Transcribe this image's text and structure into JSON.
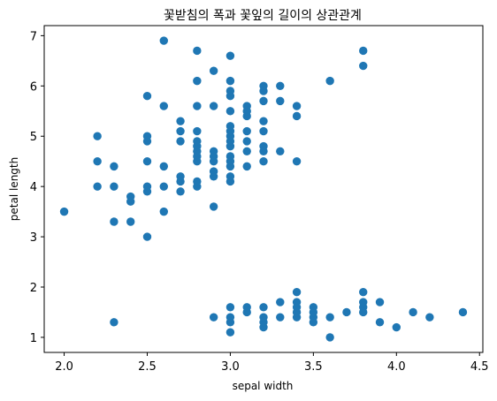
{
  "chart_data": {
    "type": "scatter",
    "title": "꽃받침의 폭과 꽃잎의 길이의 상관관계",
    "xlabel": "sepal width",
    "ylabel": "petal length",
    "xlim": [
      1.88,
      4.52
    ],
    "ylim": [
      0.7,
      7.2
    ],
    "xticks": [
      2.0,
      2.5,
      3.0,
      3.5,
      4.0,
      4.5
    ],
    "xtick_labels": [
      "2.0",
      "2.5",
      "3.0",
      "3.5",
      "4.0",
      "4.5"
    ],
    "yticks": [
      1,
      2,
      3,
      4,
      5,
      6,
      7
    ],
    "ytick_labels": [
      "1",
      "2",
      "3",
      "4",
      "5",
      "6",
      "7"
    ],
    "grid": false,
    "marker_color": "#1f77b4",
    "points": [
      {
        "x": 2.0,
        "y": 3.5
      },
      {
        "x": 2.2,
        "y": 4.0
      },
      {
        "x": 2.2,
        "y": 4.5
      },
      {
        "x": 2.2,
        "y": 5.0
      },
      {
        "x": 2.3,
        "y": 1.3
      },
      {
        "x": 2.3,
        "y": 3.3
      },
      {
        "x": 2.3,
        "y": 4.0
      },
      {
        "x": 2.3,
        "y": 4.4
      },
      {
        "x": 2.4,
        "y": 3.3
      },
      {
        "x": 2.4,
        "y": 3.7
      },
      {
        "x": 2.4,
        "y": 3.8
      },
      {
        "x": 2.5,
        "y": 3.0
      },
      {
        "x": 2.5,
        "y": 3.9
      },
      {
        "x": 2.5,
        "y": 4.0
      },
      {
        "x": 2.5,
        "y": 4.5
      },
      {
        "x": 2.5,
        "y": 4.9
      },
      {
        "x": 2.5,
        "y": 5.0
      },
      {
        "x": 2.5,
        "y": 5.8
      },
      {
        "x": 2.6,
        "y": 3.5
      },
      {
        "x": 2.6,
        "y": 4.0
      },
      {
        "x": 2.6,
        "y": 4.4
      },
      {
        "x": 2.6,
        "y": 5.6
      },
      {
        "x": 2.6,
        "y": 6.9
      },
      {
        "x": 2.7,
        "y": 3.9
      },
      {
        "x": 2.7,
        "y": 4.1
      },
      {
        "x": 2.7,
        "y": 4.2
      },
      {
        "x": 2.7,
        "y": 4.9
      },
      {
        "x": 2.7,
        "y": 5.1
      },
      {
        "x": 2.7,
        "y": 5.3
      },
      {
        "x": 2.8,
        "y": 4.0
      },
      {
        "x": 2.8,
        "y": 4.1
      },
      {
        "x": 2.8,
        "y": 4.5
      },
      {
        "x": 2.8,
        "y": 4.6
      },
      {
        "x": 2.8,
        "y": 4.7
      },
      {
        "x": 2.8,
        "y": 4.8
      },
      {
        "x": 2.8,
        "y": 4.9
      },
      {
        "x": 2.8,
        "y": 5.1
      },
      {
        "x": 2.8,
        "y": 5.6
      },
      {
        "x": 2.8,
        "y": 6.1
      },
      {
        "x": 2.8,
        "y": 6.7
      },
      {
        "x": 2.9,
        "y": 1.4
      },
      {
        "x": 2.9,
        "y": 3.6
      },
      {
        "x": 2.9,
        "y": 4.2
      },
      {
        "x": 2.9,
        "y": 4.3
      },
      {
        "x": 2.9,
        "y": 4.5
      },
      {
        "x": 2.9,
        "y": 4.6
      },
      {
        "x": 2.9,
        "y": 4.7
      },
      {
        "x": 2.9,
        "y": 5.6
      },
      {
        "x": 2.9,
        "y": 6.3
      },
      {
        "x": 3.0,
        "y": 1.1
      },
      {
        "x": 3.0,
        "y": 1.3
      },
      {
        "x": 3.0,
        "y": 1.4
      },
      {
        "x": 3.0,
        "y": 1.6
      },
      {
        "x": 3.0,
        "y": 4.1
      },
      {
        "x": 3.0,
        "y": 4.2
      },
      {
        "x": 3.0,
        "y": 4.4
      },
      {
        "x": 3.0,
        "y": 4.5
      },
      {
        "x": 3.0,
        "y": 4.6
      },
      {
        "x": 3.0,
        "y": 4.8
      },
      {
        "x": 3.0,
        "y": 4.9
      },
      {
        "x": 3.0,
        "y": 5.0
      },
      {
        "x": 3.0,
        "y": 5.1
      },
      {
        "x": 3.0,
        "y": 5.2
      },
      {
        "x": 3.0,
        "y": 5.5
      },
      {
        "x": 3.0,
        "y": 5.8
      },
      {
        "x": 3.0,
        "y": 5.9
      },
      {
        "x": 3.0,
        "y": 6.1
      },
      {
        "x": 3.0,
        "y": 6.6
      },
      {
        "x": 3.1,
        "y": 1.5
      },
      {
        "x": 3.1,
        "y": 1.6
      },
      {
        "x": 3.1,
        "y": 4.4
      },
      {
        "x": 3.1,
        "y": 4.7
      },
      {
        "x": 3.1,
        "y": 4.9
      },
      {
        "x": 3.1,
        "y": 5.1
      },
      {
        "x": 3.1,
        "y": 5.4
      },
      {
        "x": 3.1,
        "y": 5.5
      },
      {
        "x": 3.1,
        "y": 5.6
      },
      {
        "x": 3.2,
        "y": 1.2
      },
      {
        "x": 3.2,
        "y": 1.3
      },
      {
        "x": 3.2,
        "y": 1.4
      },
      {
        "x": 3.2,
        "y": 1.6
      },
      {
        "x": 3.2,
        "y": 4.5
      },
      {
        "x": 3.2,
        "y": 4.7
      },
      {
        "x": 3.2,
        "y": 4.8
      },
      {
        "x": 3.2,
        "y": 5.1
      },
      {
        "x": 3.2,
        "y": 5.3
      },
      {
        "x": 3.2,
        "y": 5.7
      },
      {
        "x": 3.2,
        "y": 5.9
      },
      {
        "x": 3.2,
        "y": 6.0
      },
      {
        "x": 3.3,
        "y": 1.4
      },
      {
        "x": 3.3,
        "y": 1.7
      },
      {
        "x": 3.3,
        "y": 4.7
      },
      {
        "x": 3.3,
        "y": 5.7
      },
      {
        "x": 3.3,
        "y": 6.0
      },
      {
        "x": 3.4,
        "y": 1.4
      },
      {
        "x": 3.4,
        "y": 1.5
      },
      {
        "x": 3.4,
        "y": 1.6
      },
      {
        "x": 3.4,
        "y": 1.7
      },
      {
        "x": 3.4,
        "y": 1.9
      },
      {
        "x": 3.4,
        "y": 4.5
      },
      {
        "x": 3.4,
        "y": 5.4
      },
      {
        "x": 3.4,
        "y": 5.6
      },
      {
        "x": 3.5,
        "y": 1.3
      },
      {
        "x": 3.5,
        "y": 1.4
      },
      {
        "x": 3.5,
        "y": 1.5
      },
      {
        "x": 3.5,
        "y": 1.6
      },
      {
        "x": 3.6,
        "y": 1.0
      },
      {
        "x": 3.6,
        "y": 1.4
      },
      {
        "x": 3.6,
        "y": 6.1
      },
      {
        "x": 3.7,
        "y": 1.5
      },
      {
        "x": 3.8,
        "y": 1.5
      },
      {
        "x": 3.8,
        "y": 1.6
      },
      {
        "x": 3.8,
        "y": 1.7
      },
      {
        "x": 3.8,
        "y": 1.9
      },
      {
        "x": 3.8,
        "y": 6.4
      },
      {
        "x": 3.8,
        "y": 6.7
      },
      {
        "x": 3.9,
        "y": 1.3
      },
      {
        "x": 3.9,
        "y": 1.7
      },
      {
        "x": 4.0,
        "y": 1.2
      },
      {
        "x": 4.1,
        "y": 1.5
      },
      {
        "x": 4.2,
        "y": 1.4
      },
      {
        "x": 4.4,
        "y": 1.5
      }
    ]
  }
}
